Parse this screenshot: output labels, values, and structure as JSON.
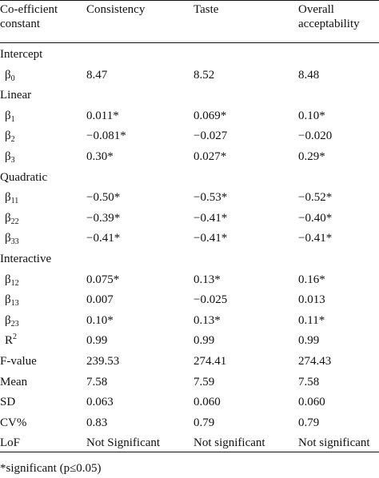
{
  "header": {
    "coef_line1": "Co-efficient",
    "coef_line2": "constant",
    "consistency": "Consistency",
    "taste": "Taste",
    "overall_line1": "Overall",
    "overall_line2": "acceptability"
  },
  "rows": [
    {
      "type": "section",
      "label": "Intercept"
    },
    {
      "type": "data",
      "sym": "β",
      "sub": "0",
      "v1": "8.47",
      "v2": "8.52",
      "v3": "8.48"
    },
    {
      "type": "section",
      "label": "Linear"
    },
    {
      "type": "data",
      "sym": "β",
      "sub": "1",
      "v1": "0.011*",
      "v2": "0.069*",
      "v3": "0.10*"
    },
    {
      "type": "data",
      "sym": "β",
      "sub": "2",
      "v1": "−0.081*",
      "v2": "−0.027",
      "v3": "−0.020"
    },
    {
      "type": "data",
      "sym": "β",
      "sub": "3",
      "v1": "0.30*",
      "v2": "0.027*",
      "v3": "0.29*"
    },
    {
      "type": "section",
      "label": "Quadratic"
    },
    {
      "type": "data",
      "sym": "β",
      "sub": "11",
      "v1": "−0.50*",
      "v2": "−0.53*",
      "v3": "−0.52*"
    },
    {
      "type": "data",
      "sym": "β",
      "sub": "22",
      "v1": "−0.39*",
      "v2": "−0.41*",
      "v3": "−0.40*"
    },
    {
      "type": "data",
      "sym": "β",
      "sub": "33",
      "v1": "−0.41*",
      "v2": "−0.41*",
      "v3": "−0.41*"
    },
    {
      "type": "section",
      "label": "Interactive"
    },
    {
      "type": "data",
      "sym": "β",
      "sub": "12",
      "v1": "0.075*",
      "v2": "0.13*",
      "v3": "0.16*"
    },
    {
      "type": "data",
      "sym": "β",
      "sub": "13",
      "v1": "0.007",
      "v2": "−0.025",
      "v3": "0.013"
    },
    {
      "type": "data",
      "sym": "β",
      "sub": "23",
      "v1": "0.10*",
      "v2": "0.13*",
      "v3": "0.11*"
    },
    {
      "type": "data",
      "sym": "R",
      "sup": "2",
      "v1": "0.99",
      "v2": "0.99",
      "v3": "0.99"
    },
    {
      "type": "data",
      "sym": "F-value",
      "v1": "239.53",
      "v2": "274.41",
      "v3": "274.43"
    },
    {
      "type": "data",
      "sym": "Mean",
      "v1": "7.58",
      "v2": "7.59",
      "v3": "7.58"
    },
    {
      "type": "data",
      "sym": "SD",
      "v1": "0.063",
      "v2": "0.060",
      "v3": "0.060"
    },
    {
      "type": "data",
      "sym": "CV%",
      "v1": "0.83",
      "v2": "0.79",
      "v3": "0.79"
    },
    {
      "type": "data",
      "sym": "LoF",
      "v1": "Not Significant",
      "v2": "Not significant",
      "v3": "Not significant"
    }
  ],
  "footnote": "*significant (p≤0.05)"
}
